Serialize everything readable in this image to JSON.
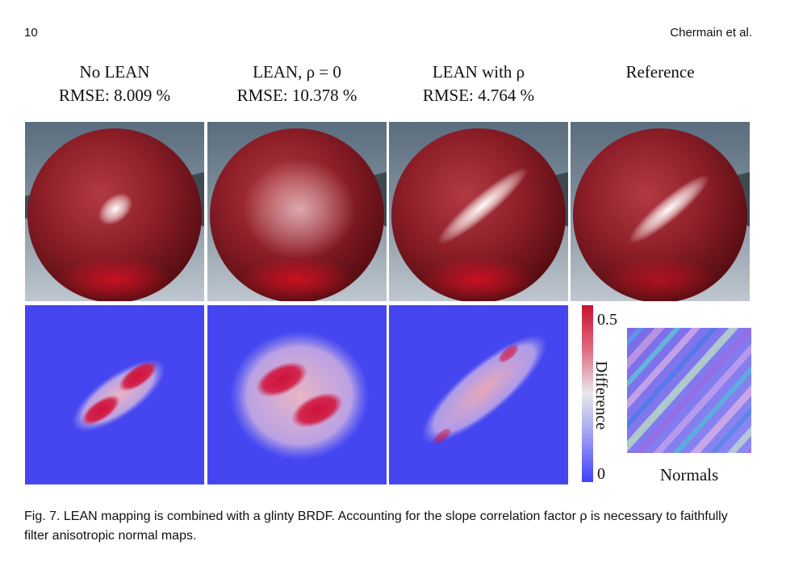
{
  "header": {
    "page_number": "10",
    "running_head": "Chermain et al."
  },
  "columns": [
    {
      "title": "No LEAN",
      "rmse": "RMSE: 8.009 %"
    },
    {
      "title": "LEAN, ρ = 0",
      "rmse": "RMSE: 10.378 %"
    },
    {
      "title": "LEAN with ρ",
      "rmse": "RMSE: 4.764 %"
    },
    {
      "title": "Reference",
      "rmse": ""
    }
  ],
  "colorbar": {
    "max_label": "0.5",
    "min_label": "0",
    "label": "Difference",
    "colors": [
      "#c8102e",
      "#e8e8ee",
      "#4040ff"
    ]
  },
  "normals_label": "Normals",
  "caption": "Fig. 7.  LEAN mapping is combined with a glinty BRDF. Accounting for the slope correlation factor ρ is necessary to faithfully filter anisotropic normal maps.",
  "colors": {
    "sphere": "#8a1a22",
    "diff_background": "#4646f0",
    "diff_high": "#d0103a"
  }
}
